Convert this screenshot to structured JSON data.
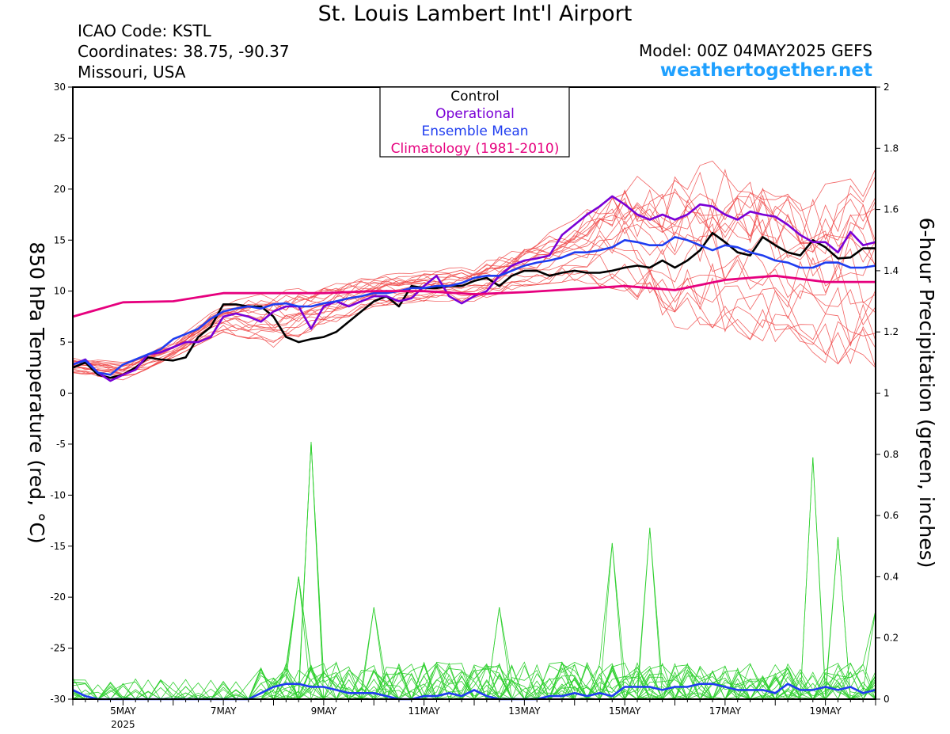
{
  "header": {
    "title": "St. Louis Lambert Int'l Airport",
    "icao": "ICAO Code: KSTL",
    "coords": "Coordinates: 38.75, -90.37",
    "region": "Missouri, USA",
    "model": "Model: 00Z 04MAY2025 GEFS",
    "site": "weathertogether.net"
  },
  "colors": {
    "control": "#000000",
    "operational": "#7a00d6",
    "mean": "#1f3df0",
    "climatology": "#e6007e",
    "members_temp": "#f04848",
    "members_precip": "#30d030",
    "site": "#1fa0ff"
  },
  "chart_data": {
    "type": "line",
    "ylabel_left": "850 hPa Temperature (red, °C)",
    "ylabel_right": "6-hour Precipitation (green, inches)",
    "ylim_left": [
      -30,
      30
    ],
    "ylim_right": [
      0,
      2
    ],
    "yticks_left": [
      "30",
      "25",
      "20",
      "15",
      "10",
      "5",
      "0",
      "-5",
      "-10",
      "-15",
      "-20",
      "-25",
      "-30"
    ],
    "yticks_right": [
      "2",
      "1.8",
      "1.6",
      "1.4",
      "1.2",
      "1",
      "0.8",
      "0.6",
      "0.4",
      "0.2",
      "0"
    ],
    "xlim_days": [
      4.0,
      20.0
    ],
    "xticks": [
      {
        "day": 5,
        "label": "5MAY",
        "sub": "2025"
      },
      {
        "day": 7,
        "label": "7MAY"
      },
      {
        "day": 9,
        "label": "9MAY"
      },
      {
        "day": 11,
        "label": "11MAY"
      },
      {
        "day": 13,
        "label": "13MAY"
      },
      {
        "day": 15,
        "label": "15MAY"
      },
      {
        "day": 17,
        "label": "17MAY"
      },
      {
        "day": 19,
        "label": "19MAY"
      }
    ],
    "legend": {
      "position": "top-center",
      "entries": [
        "Control",
        "Operational",
        "Ensemble Mean",
        "Climatology (1981-2010)"
      ]
    },
    "grid": false,
    "series": [
      {
        "name": "Control",
        "axis": "left",
        "x": [
          4.0,
          4.25,
          4.5,
          4.75,
          5.0,
          5.25,
          5.5,
          5.75,
          6.0,
          6.25,
          6.5,
          6.75,
          7.0,
          7.25,
          7.5,
          7.75,
          8.0,
          8.25,
          8.5,
          8.75,
          9.0,
          9.25,
          9.5,
          9.75,
          10.0,
          10.25,
          10.5,
          10.75,
          11.0,
          11.25,
          11.5,
          11.75,
          12.0,
          12.25,
          12.5,
          12.75,
          13.0,
          13.25,
          13.5,
          13.75,
          14.0,
          14.25,
          14.5,
          14.75,
          15.0,
          15.25,
          15.5,
          15.75,
          16.0,
          16.25,
          16.5,
          16.75,
          17.0,
          17.25,
          17.5,
          17.75,
          18.0,
          18.25,
          18.5,
          18.75,
          19.0,
          19.25,
          19.5,
          19.75,
          20.0
        ],
        "y": [
          2.5,
          3.0,
          1.8,
          1.5,
          1.8,
          2.5,
          3.5,
          3.3,
          3.2,
          3.5,
          5.5,
          6.5,
          8.7,
          8.7,
          8.5,
          8.5,
          7.5,
          5.5,
          5.0,
          5.3,
          5.5,
          6.0,
          7.0,
          8.0,
          9.0,
          9.5,
          8.5,
          10.5,
          10.3,
          10.3,
          10.5,
          10.5,
          11.0,
          11.3,
          10.5,
          11.5,
          12.0,
          12.0,
          11.5,
          11.8,
          12.0,
          11.8,
          11.8,
          12.0,
          12.3,
          12.5,
          12.3,
          13.0,
          12.3,
          13.0,
          14.0,
          15.7,
          14.8,
          13.8,
          13.5,
          15.3,
          14.5,
          13.8,
          13.5,
          15.0,
          14.3,
          13.2,
          13.3,
          14.2,
          14.2
        ]
      },
      {
        "name": "Operational",
        "axis": "left",
        "x": [
          4.0,
          4.25,
          4.5,
          4.75,
          5.0,
          5.25,
          5.5,
          5.75,
          6.0,
          6.25,
          6.5,
          6.75,
          7.0,
          7.25,
          7.5,
          7.75,
          8.0,
          8.25,
          8.5,
          8.75,
          9.0,
          9.25,
          9.5,
          9.75,
          10.0,
          10.25,
          10.5,
          10.75,
          11.0,
          11.25,
          11.5,
          11.75,
          12.0,
          12.25,
          12.5,
          12.75,
          13.0,
          13.25,
          13.5,
          13.75,
          14.0,
          14.25,
          14.5,
          14.75,
          15.0,
          15.25,
          15.5,
          15.75,
          16.0,
          16.25,
          16.5,
          16.75,
          17.0,
          17.25,
          17.5,
          17.75,
          18.0,
          18.25,
          18.5,
          18.75,
          19.0,
          19.25,
          19.5,
          19.75,
          20.0
        ],
        "y": [
          2.8,
          3.3,
          2.0,
          1.2,
          1.8,
          2.3,
          3.8,
          4.0,
          4.5,
          5.0,
          5.0,
          5.5,
          7.5,
          7.8,
          7.5,
          7.0,
          8.0,
          8.5,
          8.5,
          6.3,
          8.5,
          9.0,
          8.5,
          9.0,
          9.5,
          9.5,
          9.0,
          9.3,
          10.5,
          11.5,
          9.5,
          8.8,
          9.5,
          10.0,
          11.5,
          12.5,
          13.0,
          13.2,
          13.5,
          15.5,
          16.5,
          17.5,
          18.3,
          19.3,
          18.5,
          17.5,
          17.0,
          17.5,
          17.0,
          17.5,
          18.5,
          18.3,
          17.5,
          17.0,
          17.8,
          17.5,
          17.3,
          16.5,
          15.5,
          14.8,
          14.8,
          13.8,
          15.8,
          14.5,
          14.8
        ]
      },
      {
        "name": "Ensemble Mean",
        "axis": "left",
        "x": [
          4.0,
          4.25,
          4.5,
          4.75,
          5.0,
          5.25,
          5.5,
          5.75,
          6.0,
          6.25,
          6.5,
          6.75,
          7.0,
          7.25,
          7.5,
          7.75,
          8.0,
          8.25,
          8.5,
          8.75,
          9.0,
          9.25,
          9.5,
          9.75,
          10.0,
          10.25,
          10.5,
          10.75,
          11.0,
          11.25,
          11.5,
          11.75,
          12.0,
          12.25,
          12.5,
          12.75,
          13.0,
          13.25,
          13.5,
          13.75,
          14.0,
          14.25,
          14.5,
          14.75,
          15.0,
          15.25,
          15.5,
          15.75,
          16.0,
          16.25,
          16.5,
          16.75,
          17.0,
          17.25,
          17.5,
          17.75,
          18.0,
          18.25,
          18.5,
          18.75,
          19.0,
          19.25,
          19.5,
          19.75,
          20.0
        ],
        "y": [
          2.8,
          3.2,
          2.0,
          1.8,
          2.8,
          3.3,
          3.8,
          4.3,
          5.3,
          5.8,
          6.3,
          7.3,
          8.0,
          8.3,
          8.5,
          8.3,
          8.7,
          8.8,
          8.5,
          8.5,
          8.8,
          9.0,
          9.3,
          9.5,
          9.8,
          9.8,
          10.0,
          10.3,
          10.3,
          10.5,
          10.5,
          10.8,
          11.3,
          11.5,
          11.5,
          12.0,
          12.5,
          12.8,
          13.0,
          13.3,
          13.8,
          13.8,
          14.0,
          14.3,
          15.0,
          14.8,
          14.5,
          14.5,
          15.3,
          15.0,
          14.5,
          14.0,
          14.5,
          14.3,
          13.8,
          13.5,
          13.0,
          12.8,
          12.3,
          12.3,
          12.8,
          12.8,
          12.3,
          12.3,
          12.5
        ]
      },
      {
        "name": "Climatology (1981-2010)",
        "axis": "left",
        "x": [
          4.0,
          5.0,
          6.0,
          7.0,
          8.0,
          9.0,
          10.0,
          11.0,
          12.0,
          13.0,
          14.0,
          15.0,
          16.0,
          17.0,
          18.0,
          19.0,
          20.0
        ],
        "y": [
          7.5,
          8.9,
          9.0,
          9.8,
          9.8,
          9.8,
          10.0,
          10.0,
          9.7,
          9.9,
          10.2,
          10.5,
          10.1,
          11.1,
          11.5,
          10.9,
          10.9
        ]
      },
      {
        "name": "Ensemble Mean",
        "axis": "right",
        "x": [
          4.0,
          4.25,
          4.5,
          4.75,
          5.0,
          5.25,
          5.5,
          5.75,
          6.0,
          6.25,
          6.5,
          6.75,
          7.0,
          7.25,
          7.5,
          7.75,
          8.0,
          8.25,
          8.5,
          8.75,
          9.0,
          9.25,
          9.5,
          9.75,
          10.0,
          10.25,
          10.5,
          10.75,
          11.0,
          11.25,
          11.5,
          11.75,
          12.0,
          12.25,
          12.5,
          12.75,
          13.0,
          13.25,
          13.5,
          13.75,
          14.0,
          14.25,
          14.5,
          14.75,
          15.0,
          15.25,
          15.5,
          15.75,
          16.0,
          16.25,
          16.5,
          16.75,
          17.0,
          17.25,
          17.5,
          17.75,
          18.0,
          18.25,
          18.5,
          18.75,
          19.0,
          19.25,
          19.5,
          19.75,
          20.0
        ],
        "y": [
          0.03,
          0.01,
          0.0,
          0.0,
          0.0,
          0.0,
          0.0,
          0.0,
          0.0,
          0.0,
          0.0,
          0.0,
          0.0,
          0.0,
          0.0,
          0.02,
          0.04,
          0.05,
          0.05,
          0.04,
          0.04,
          0.03,
          0.02,
          0.02,
          0.02,
          0.01,
          0.0,
          0.0,
          0.01,
          0.01,
          0.02,
          0.01,
          0.03,
          0.01,
          0.0,
          0.0,
          0.0,
          0.0,
          0.01,
          0.01,
          0.02,
          0.01,
          0.02,
          0.01,
          0.04,
          0.04,
          0.04,
          0.03,
          0.04,
          0.04,
          0.05,
          0.05,
          0.04,
          0.03,
          0.03,
          0.03,
          0.02,
          0.05,
          0.03,
          0.03,
          0.04,
          0.03,
          0.04,
          0.02,
          0.03
        ]
      }
    ],
    "members_temp_range": [
      {
        "x": 4.0,
        "min": 2.0,
        "max": 3.5
      },
      {
        "x": 5.0,
        "min": 1.3,
        "max": 3.0
      },
      {
        "x": 6.0,
        "min": 3.5,
        "max": 5.0
      },
      {
        "x": 7.0,
        "min": 6.0,
        "max": 8.8
      },
      {
        "x": 8.0,
        "min": 4.5,
        "max": 10.0
      },
      {
        "x": 9.0,
        "min": 6.5,
        "max": 10.5
      },
      {
        "x": 10.0,
        "min": 8.5,
        "max": 11.5
      },
      {
        "x": 11.0,
        "min": 9.0,
        "max": 12.0
      },
      {
        "x": 12.0,
        "min": 9.0,
        "max": 12.5
      },
      {
        "x": 13.0,
        "min": 10.5,
        "max": 14.5
      },
      {
        "x": 14.0,
        "min": 11.0,
        "max": 17.0
      },
      {
        "x": 15.0,
        "min": 10.0,
        "max": 21.0
      },
      {
        "x": 16.0,
        "min": 6.5,
        "max": 22.0
      },
      {
        "x": 17.0,
        "min": 5.5,
        "max": 23.0
      },
      {
        "x": 18.0,
        "min": 5.0,
        "max": 21.0
      },
      {
        "x": 19.0,
        "min": 3.0,
        "max": 20.5
      },
      {
        "x": 20.0,
        "min": 2.5,
        "max": 22.0
      }
    ],
    "members_precip_peaks": [
      {
        "x": 8.75,
        "y": 0.84
      },
      {
        "x": 8.5,
        "y": 0.4
      },
      {
        "x": 10.0,
        "y": 0.3
      },
      {
        "x": 12.5,
        "y": 0.3
      },
      {
        "x": 14.75,
        "y": 0.51
      },
      {
        "x": 15.5,
        "y": 0.56
      },
      {
        "x": 18.75,
        "y": 0.79
      },
      {
        "x": 19.25,
        "y": 0.53
      },
      {
        "x": 20.0,
        "y": 0.29
      }
    ]
  }
}
